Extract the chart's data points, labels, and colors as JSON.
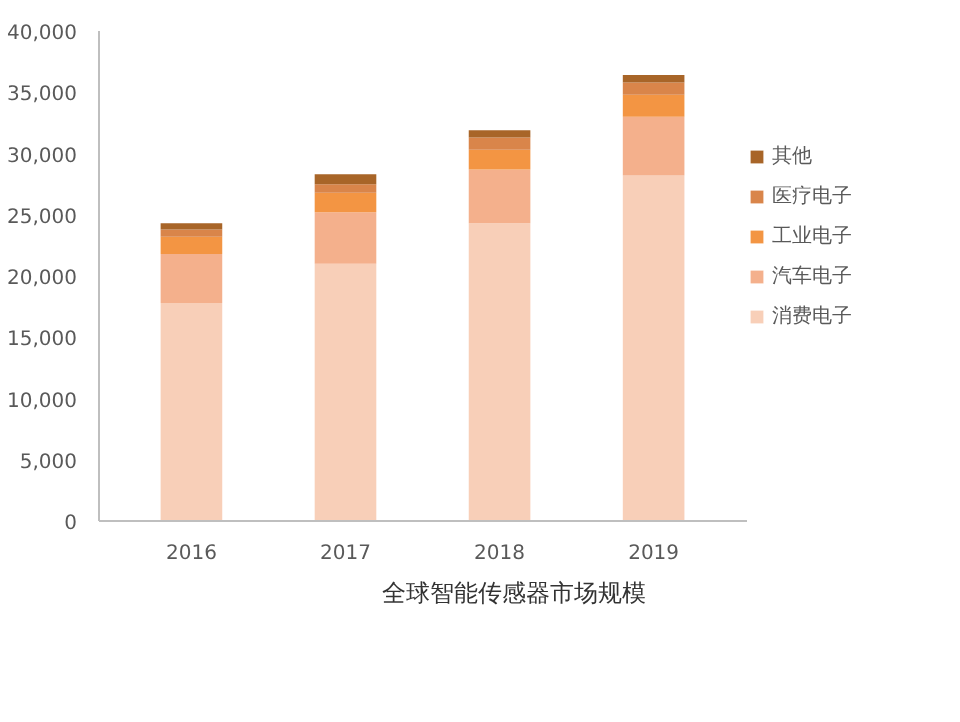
{
  "chart_data": {
    "type": "bar",
    "stacked": true,
    "title": "全球智能传感器市场规模",
    "categories": [
      "2016",
      "2017",
      "2018",
      "2019"
    ],
    "series": [
      {
        "name": "消费电子",
        "color": "#f8cfb8",
        "values": [
          17800,
          21000,
          24300,
          28200
        ]
      },
      {
        "name": "汽车电子",
        "color": "#f4b08c",
        "values": [
          4000,
          4200,
          4400,
          4800
        ]
      },
      {
        "name": "工业电子",
        "color": "#f39543",
        "values": [
          1400,
          1600,
          1600,
          1800
        ]
      },
      {
        "name": "医疗电子",
        "color": "#d9854a",
        "values": [
          600,
          700,
          1000,
          1000
        ]
      },
      {
        "name": "其他",
        "color": "#a86528",
        "values": [
          500,
          800,
          600,
          600
        ]
      }
    ],
    "ylim": [
      0,
      40000
    ],
    "yticks": [
      0,
      {
        "value": 5000,
        "label": "5,000"
      },
      {
        "value": 10000,
        "label": "10,000"
      },
      {
        "value": 15000,
        "label": "15,000"
      },
      {
        "value": 20000,
        "label": "20,000"
      },
      {
        "value": 25000,
        "label": "25,000"
      },
      {
        "value": 30000,
        "label": "30,000"
      },
      {
        "value": 35000,
        "label": "35,000"
      },
      {
        "value": 40000,
        "label": "40,000"
      }
    ],
    "grid": false,
    "legend": "right"
  }
}
